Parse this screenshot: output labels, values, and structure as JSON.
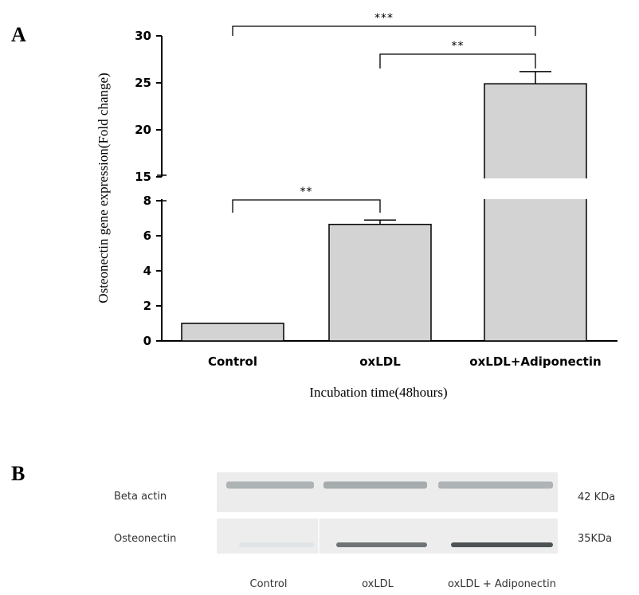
{
  "panels": {
    "a": "A",
    "b": "B"
  },
  "chart_data": {
    "type": "bar",
    "categories": [
      "Control",
      "oxLDL",
      "oxLDL+Adiponectin"
    ],
    "values": [
      1.0,
      6.65,
      24.9
    ],
    "errors": [
      0,
      0.25,
      1.3
    ],
    "ylabel": "Osteonectin gene expression(Fold change)",
    "xlabel": "Incubation time(48hours)",
    "broken_axis": {
      "lower_range": [
        0,
        8
      ],
      "upper_range": [
        15,
        30
      ]
    },
    "yticks_lower": [
      "0",
      "2",
      "4",
      "6",
      "8"
    ],
    "yticks_upper": [
      "15",
      "20",
      "25",
      "30"
    ],
    "significance": [
      {
        "from": 0,
        "to": 1,
        "label": "**"
      },
      {
        "from": 1,
        "to": 2,
        "label": "**"
      },
      {
        "from": 0,
        "to": 2,
        "label": "***"
      }
    ],
    "bar_color": "#d3d3d3"
  },
  "blot": {
    "rows": [
      {
        "label": "Beta actin",
        "size": "42 KDa",
        "intensities": [
          0.35,
          0.4,
          0.35
        ]
      },
      {
        "label": "Osteonectin",
        "size": "35KDa",
        "intensities": [
          0.05,
          0.75,
          0.95
        ]
      }
    ],
    "lanes": [
      "Control",
      "oxLDL",
      "oxLDL + Adiponectin"
    ]
  }
}
